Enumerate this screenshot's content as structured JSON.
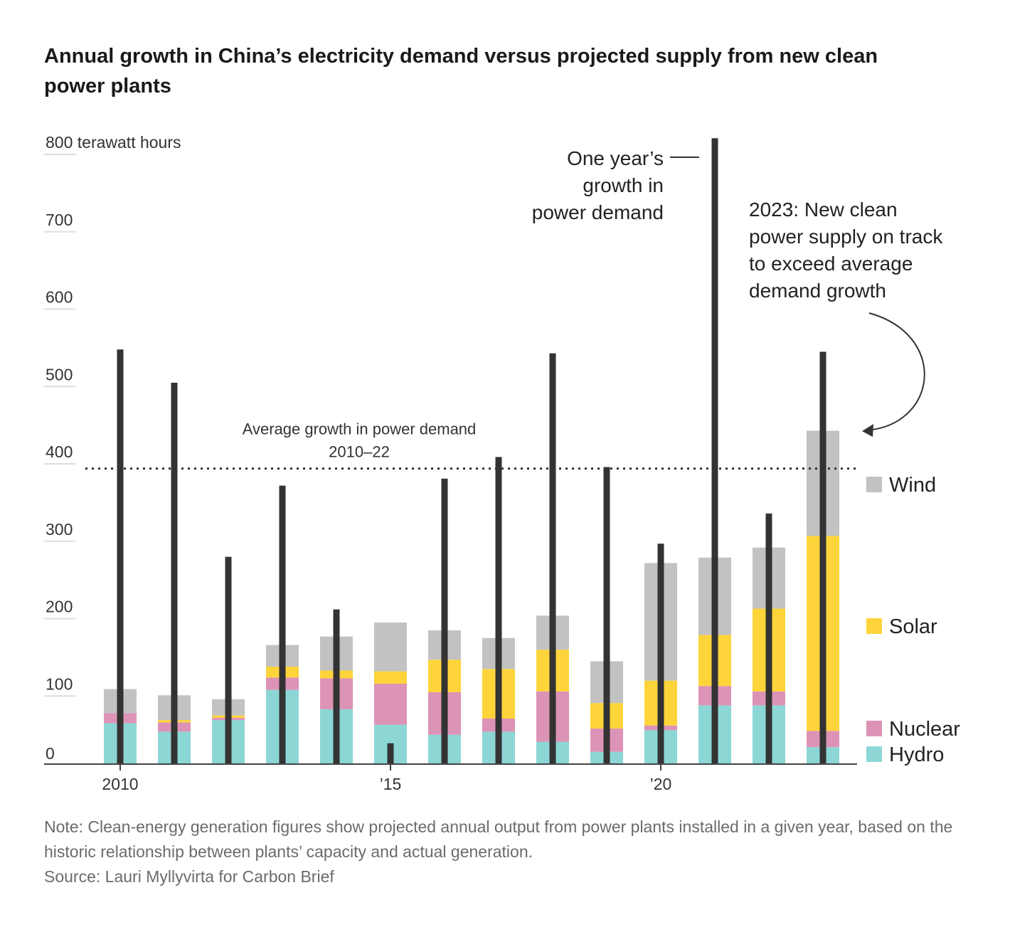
{
  "title": "Annual growth in China’s electricity demand versus projected supply from new clean power plants",
  "note": "Note: Clean-energy generation figures show projected annual output from power plants installed in a given year, based on the historic relationship between plants’ capacity and actual generation.",
  "source": "Source: Lauri Myllyvirta for Carbon Brief",
  "colors": {
    "wind": "#c2c2c2",
    "solar": "#fdd53a",
    "nuclear": "#dd93b5",
    "hydro": "#8dd6d6",
    "demand": "#333333",
    "axis": "#444444",
    "grid": "#dddddd"
  },
  "chart_data": {
    "type": "bar",
    "stacked": true,
    "title": "Annual growth in China’s electricity demand versus projected supply from new clean power plants",
    "ylabel": "terawatt hours",
    "ylim": [
      0,
      800
    ],
    "yticks": [
      0,
      100,
      200,
      300,
      400,
      500,
      600,
      700,
      800
    ],
    "ytick_labels": [
      "0",
      "100",
      "200",
      "300",
      "400",
      "500",
      "600",
      "700",
      "800 terawatt hours"
    ],
    "x": [
      2010,
      2011,
      2012,
      2013,
      2014,
      2015,
      2016,
      2017,
      2018,
      2019,
      2020,
      2021,
      2022,
      2023
    ],
    "xtick_values": [
      2010,
      2015,
      2020
    ],
    "xtick_labels": [
      "2010",
      "’15",
      "’20"
    ],
    "series": [
      {
        "name": "Hydro",
        "values": [
          52,
          41,
          56,
          95,
          70,
          50,
          37,
          41,
          28,
          15,
          43,
          75,
          75,
          21
        ]
      },
      {
        "name": "Nuclear",
        "values": [
          13,
          12,
          3,
          16,
          40,
          53,
          55,
          17,
          65,
          30,
          6,
          25,
          18,
          21
        ]
      },
      {
        "name": "Solar",
        "values": [
          0,
          3,
          3,
          14,
          10,
          16,
          42,
          64,
          54,
          33,
          58,
          66,
          107,
          252
        ]
      },
      {
        "name": "Wind",
        "values": [
          31,
          32,
          21,
          28,
          44,
          63,
          38,
          40,
          44,
          54,
          152,
          100,
          79,
          136
        ]
      }
    ],
    "demand_growth": {
      "name": "One year’s growth in power demand",
      "values": [
        535,
        492,
        267,
        359,
        199,
        26,
        368,
        396,
        530,
        383,
        284,
        808,
        323,
        532
      ]
    },
    "average_line": {
      "value": 381,
      "label_line1": "Average growth in power demand",
      "label_line2": "2010–22"
    },
    "annotations": {
      "demand_line1": "One year’s",
      "demand_line2": "growth in",
      "demand_line3": "power demand",
      "supply_line1": "2023: New clean",
      "supply_line2": "power supply on track",
      "supply_line3": "to exceed average",
      "supply_line4": "demand growth"
    },
    "legend": [
      "Wind",
      "Solar",
      "Nuclear",
      "Hydro"
    ],
    "legend_placement": "right"
  }
}
